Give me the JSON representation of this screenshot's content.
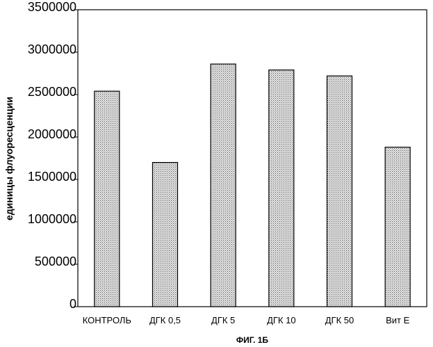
{
  "figure_caption": "ФИГ. 1Б",
  "chart_data": {
    "type": "bar",
    "categories": [
      "КОНТРОЛЬ",
      "ДГК 0,5",
      "ДГК 5",
      "ДГК 10",
      "ДГК 50",
      "Вит Е"
    ],
    "values": [
      2540000,
      1700000,
      2860000,
      2790000,
      2720000,
      1880000
    ],
    "xlabel": "",
    "ylabel": "единицы флуоресценции",
    "ylim": [
      0,
      3500000
    ],
    "yticks": [
      0,
      500000,
      1000000,
      1500000,
      2000000,
      2500000,
      3000000,
      3500000
    ],
    "ytick_labels": [
      "0",
      "500000",
      "1000000",
      "1500000",
      "2000000",
      "2500000",
      "3000000",
      "3500000"
    ],
    "grid": false,
    "legend": "none",
    "bar_fill": "#c8c8c8",
    "bar_stroke": "#000000"
  }
}
